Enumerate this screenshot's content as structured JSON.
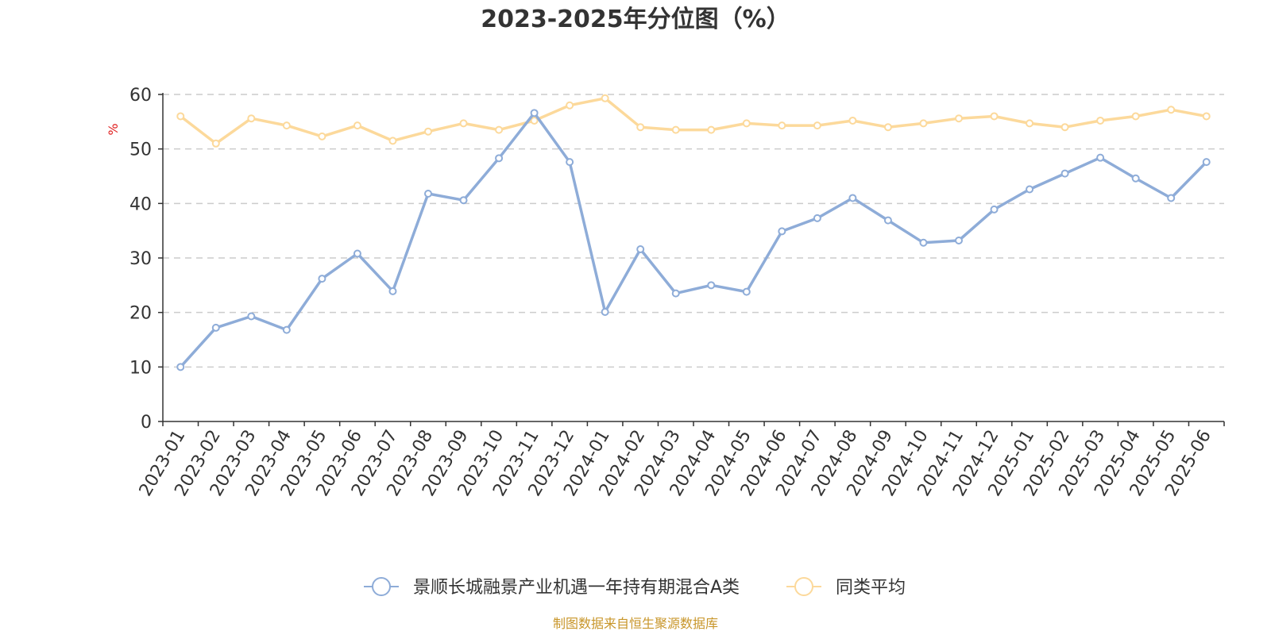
{
  "chart_data": {
    "type": "line",
    "title": "2023-2025年分位图（%）",
    "ylabel": "%",
    "ylim": [
      0,
      60
    ],
    "yticks": [
      0,
      10,
      20,
      30,
      40,
      50,
      60
    ],
    "grid": true,
    "legend_position": "bottom-center",
    "categories": [
      "2023-01",
      "2023-02",
      "2023-03",
      "2023-04",
      "2023-05",
      "2023-06",
      "2023-07",
      "2023-08",
      "2023-09",
      "2023-10",
      "2023-11",
      "2023-12",
      "2024-01",
      "2024-02",
      "2024-03",
      "2024-04",
      "2024-05",
      "2024-06",
      "2024-07",
      "2024-08",
      "2024-09",
      "2024-10",
      "2024-11",
      "2024-12",
      "2025-01",
      "2025-02",
      "2025-03",
      "2025-04",
      "2025-05",
      "2025-06"
    ],
    "series": [
      {
        "name": "景顺长城融景产业机遇一年持有期混合A类",
        "color": "#8eacd8",
        "values": [
          10.0,
          17.2,
          19.3,
          16.8,
          26.2,
          30.8,
          23.9,
          41.8,
          40.6,
          48.3,
          56.6,
          47.6,
          20.1,
          31.6,
          23.5,
          25.0,
          23.8,
          34.9,
          37.3,
          41.0,
          36.9,
          32.8,
          33.2,
          38.9,
          42.6,
          45.5,
          48.4,
          44.6,
          41.0,
          47.6
        ]
      },
      {
        "name": "同类平均",
        "color": "#fcd99b",
        "values": [
          56.0,
          51.0,
          55.6,
          54.3,
          52.3,
          54.3,
          51.5,
          53.2,
          54.7,
          53.5,
          55.2,
          58.0,
          59.3,
          54.0,
          53.5,
          53.5,
          54.7,
          54.3,
          54.3,
          55.2,
          54.0,
          54.7,
          55.6,
          56.0,
          54.7,
          54.0,
          55.2,
          56.0,
          57.2,
          56.0
        ]
      }
    ]
  },
  "unit_color": "#e02020",
  "source_text": "制图数据来自恒生聚源数据库",
  "source_color": "#c8962a"
}
